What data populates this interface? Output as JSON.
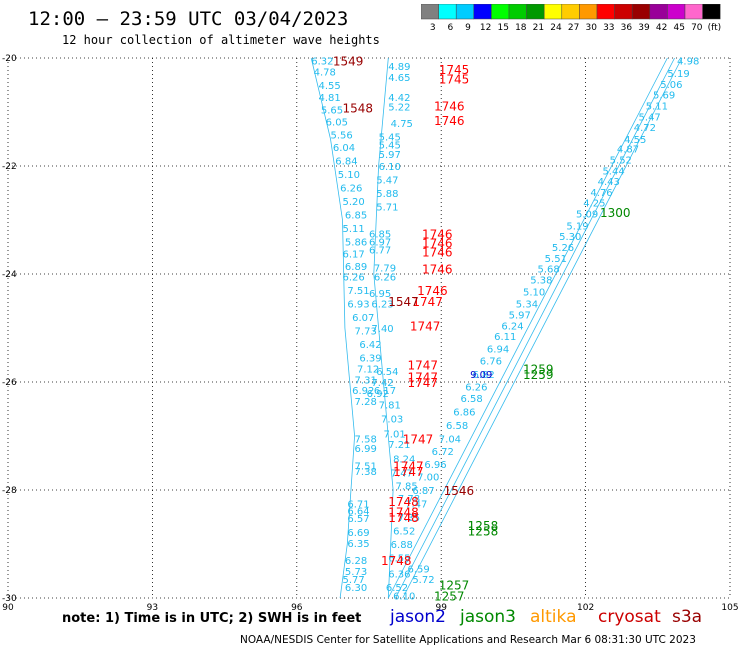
{
  "header": {
    "title": "12:00 — 23:59 UTC 03/04/2023",
    "subtitle": "12 hour collection of altimeter wave heights"
  },
  "colorbar": {
    "ticks": [
      "3",
      "6",
      "9",
      "12",
      "15",
      "18",
      "21",
      "24",
      "27",
      "30",
      "33",
      "36",
      "39",
      "42",
      "45",
      "70",
      "(ft)"
    ],
    "colors": [
      "#808080",
      "#00ffff",
      "#00ccff",
      "#0000ff",
      "#00ff00",
      "#00cc00",
      "#009900",
      "#ffff00",
      "#ffcc00",
      "#ff9900",
      "#ff0000",
      "#cc0000",
      "#990000",
      "#990099",
      "#cc00cc",
      "#ff66cc",
      "#000000"
    ]
  },
  "axes": {
    "x_ticks": [
      "90",
      "93",
      "96",
      "99",
      "102",
      "105"
    ],
    "y_ticks": [
      "-20",
      "-22",
      "-24",
      "-26",
      "-28",
      "-30"
    ]
  },
  "legend": {
    "note": "note:  1) Time is in UTC;  2) SWH is in feet",
    "satellites": [
      {
        "name": "jason2",
        "color": "#0000cc"
      },
      {
        "name": "jason3",
        "color": "#008800"
      },
      {
        "name": "altika",
        "color": "#ff9900"
      },
      {
        "name": "cryosat",
        "color": "#cc0000"
      },
      {
        "name": "s3a",
        "color": "#990000"
      }
    ]
  },
  "credit": "NOAA/NESDIS Center for Satellite Applications and Research    Mar  6 08:31:30 UTC 2023",
  "chart_data": {
    "type": "scatter",
    "xlim": [
      90,
      105
    ],
    "ylim": [
      -30,
      -20
    ],
    "grid": true,
    "swh_labels": [
      {
        "lon": 96.3,
        "lat": -20.05,
        "v": "6.32"
      },
      {
        "lon": 96.35,
        "lat": -20.25,
        "v": "4.78"
      },
      {
        "lon": 96.45,
        "lat": -20.5,
        "v": "4.55"
      },
      {
        "lon": 96.45,
        "lat": -20.72,
        "v": "4.81"
      },
      {
        "lon": 96.5,
        "lat": -20.95,
        "v": "5.65"
      },
      {
        "lon": 96.6,
        "lat": -21.18,
        "v": "6.05"
      },
      {
        "lon": 96.7,
        "lat": -21.42,
        "v": "5.56"
      },
      {
        "lon": 96.75,
        "lat": -21.65,
        "v": "6.04"
      },
      {
        "lon": 96.8,
        "lat": -21.9,
        "v": "6.84"
      },
      {
        "lon": 96.85,
        "lat": -22.15,
        "v": "5.10"
      },
      {
        "lon": 96.9,
        "lat": -22.4,
        "v": "6.26"
      },
      {
        "lon": 96.95,
        "lat": -22.65,
        "v": "5.20"
      },
      {
        "lon": 97.0,
        "lat": -22.9,
        "v": "6.85"
      },
      {
        "lon": 96.95,
        "lat": -23.15,
        "v": "5.11"
      },
      {
        "lon": 97.0,
        "lat": -23.4,
        "v": "5.86"
      },
      {
        "lon": 96.95,
        "lat": -23.62,
        "v": "6.17"
      },
      {
        "lon": 97.0,
        "lat": -23.85,
        "v": "6.89"
      },
      {
        "lon": 96.95,
        "lat": -24.05,
        "v": "6.26"
      },
      {
        "lon": 97.05,
        "lat": -24.3,
        "v": "7.51"
      },
      {
        "lon": 97.05,
        "lat": -24.55,
        "v": "6.93"
      },
      {
        "lon": 97.15,
        "lat": -24.8,
        "v": "6.07"
      },
      {
        "lon": 97.2,
        "lat": -25.05,
        "v": "7.73"
      },
      {
        "lon": 97.3,
        "lat": -25.3,
        "v": "6.42"
      },
      {
        "lon": 97.3,
        "lat": -25.55,
        "v": "6.39"
      },
      {
        "lon": 97.25,
        "lat": -25.75,
        "v": "7.12"
      },
      {
        "lon": 97.2,
        "lat": -25.95,
        "v": "7.31"
      },
      {
        "lon": 97.15,
        "lat": -26.15,
        "v": "6.92"
      },
      {
        "lon": 97.2,
        "lat": -26.35,
        "v": "7.28"
      },
      {
        "lon": 97.6,
        "lat": -26.15,
        "v": "6.17"
      },
      {
        "lon": 97.7,
        "lat": -26.42,
        "v": "7.81"
      },
      {
        "lon": 97.75,
        "lat": -26.68,
        "v": "7.03"
      },
      {
        "lon": 97.8,
        "lat": -26.95,
        "v": "7.01"
      },
      {
        "lon": 97.2,
        "lat": -27.05,
        "v": "7.58"
      },
      {
        "lon": 97.2,
        "lat": -27.22,
        "v": "6.99"
      },
      {
        "lon": 97.2,
        "lat": -27.55,
        "v": "7.51"
      },
      {
        "lon": 97.2,
        "lat": -27.65,
        "v": "7.38"
      },
      {
        "lon": 97.9,
        "lat": -27.15,
        "v": "7.21"
      },
      {
        "lon": 98.0,
        "lat": -27.42,
        "v": "8.24"
      },
      {
        "lon": 97.95,
        "lat": -27.68,
        "v": "7.47"
      },
      {
        "lon": 98.05,
        "lat": -27.92,
        "v": "7.85"
      },
      {
        "lon": 98.1,
        "lat": -28.15,
        "v": "7.78"
      },
      {
        "lon": 97.05,
        "lat": -28.25,
        "v": "6.71"
      },
      {
        "lon": 97.05,
        "lat": -28.38,
        "v": "6.64"
      },
      {
        "lon": 97.05,
        "lat": -28.52,
        "v": "6.57"
      },
      {
        "lon": 97.05,
        "lat": -28.78,
        "v": "6.69"
      },
      {
        "lon": 97.05,
        "lat": -28.98,
        "v": "6.35"
      },
      {
        "lon": 97.0,
        "lat": -29.3,
        "v": "6.28"
      },
      {
        "lon": 97.0,
        "lat": -29.5,
        "v": "5.73"
      },
      {
        "lon": 96.95,
        "lat": -29.65,
        "v": "5.77"
      },
      {
        "lon": 97.0,
        "lat": -29.8,
        "v": "6.30"
      },
      {
        "lon": 97.9,
        "lat": -20.15,
        "v": "4.89"
      },
      {
        "lon": 97.9,
        "lat": -20.35,
        "v": "4.65"
      },
      {
        "lon": 97.9,
        "lat": -20.72,
        "v": "4.42"
      },
      {
        "lon": 97.9,
        "lat": -20.9,
        "v": "5.22"
      },
      {
        "lon": 97.95,
        "lat": -21.2,
        "v": "4.75"
      },
      {
        "lon": 97.7,
        "lat": -21.45,
        "v": "5.45"
      },
      {
        "lon": 97.7,
        "lat": -21.6,
        "v": "5.45"
      },
      {
        "lon": 97.7,
        "lat": -21.78,
        "v": "5.97"
      },
      {
        "lon": 97.7,
        "lat": -22.0,
        "v": "6.10"
      },
      {
        "lon": 97.65,
        "lat": -22.25,
        "v": "5.47"
      },
      {
        "lon": 97.65,
        "lat": -22.5,
        "v": "5.88"
      },
      {
        "lon": 97.65,
        "lat": -22.75,
        "v": "5.71"
      },
      {
        "lon": 97.5,
        "lat": -23.25,
        "v": "6.85"
      },
      {
        "lon": 97.5,
        "lat": -23.4,
        "v": "6.97"
      },
      {
        "lon": 97.5,
        "lat": -23.55,
        "v": "6.77"
      },
      {
        "lon": 97.6,
        "lat": -23.88,
        "v": "7.79"
      },
      {
        "lon": 97.6,
        "lat": -24.05,
        "v": "6.26"
      },
      {
        "lon": 97.5,
        "lat": -24.35,
        "v": "6.95"
      },
      {
        "lon": 97.55,
        "lat": -24.55,
        "v": "6.23"
      },
      {
        "lon": 97.55,
        "lat": -25.0,
        "v": "7.40"
      },
      {
        "lon": 97.65,
        "lat": -25.8,
        "v": "6.54"
      },
      {
        "lon": 97.55,
        "lat": -26.0,
        "v": "7.42"
      },
      {
        "lon": 97.45,
        "lat": -26.2,
        "v": "6.92"
      },
      {
        "lon": 103.9,
        "lat": -20.05,
        "v": "4.98"
      },
      {
        "lon": 103.7,
        "lat": -20.28,
        "v": "5.19"
      },
      {
        "lon": 103.55,
        "lat": -20.48,
        "v": "5.06"
      },
      {
        "lon": 103.4,
        "lat": -20.68,
        "v": "5.69"
      },
      {
        "lon": 103.25,
        "lat": -20.88,
        "v": "5.11"
      },
      {
        "lon": 103.1,
        "lat": -21.08,
        "v": "5.47"
      },
      {
        "lon": 103.0,
        "lat": -21.28,
        "v": "4.72"
      },
      {
        "lon": 102.8,
        "lat": -21.5,
        "v": "4.55"
      },
      {
        "lon": 102.65,
        "lat": -21.68,
        "v": "4.87"
      },
      {
        "lon": 102.5,
        "lat": -21.88,
        "v": "5.52"
      },
      {
        "lon": 102.35,
        "lat": -22.08,
        "v": "5.44"
      },
      {
        "lon": 102.25,
        "lat": -22.28,
        "v": "4.43"
      },
      {
        "lon": 102.1,
        "lat": -22.48,
        "v": "4.76"
      },
      {
        "lon": 101.95,
        "lat": -22.68,
        "v": "4.25"
      },
      {
        "lon": 101.8,
        "lat": -22.88,
        "v": "5.09"
      },
      {
        "lon": 101.6,
        "lat": -23.1,
        "v": "5.19"
      },
      {
        "lon": 101.45,
        "lat": -23.3,
        "v": "5.30"
      },
      {
        "lon": 101.3,
        "lat": -23.5,
        "v": "5.26"
      },
      {
        "lon": 101.15,
        "lat": -23.7,
        "v": "5.51"
      },
      {
        "lon": 101.0,
        "lat": -23.9,
        "v": "5.68"
      },
      {
        "lon": 100.85,
        "lat": -24.1,
        "v": "5.38"
      },
      {
        "lon": 100.7,
        "lat": -24.32,
        "v": "5.10"
      },
      {
        "lon": 100.55,
        "lat": -24.55,
        "v": "5.34"
      },
      {
        "lon": 100.4,
        "lat": -24.75,
        "v": "5.97"
      },
      {
        "lon": 100.25,
        "lat": -24.95,
        "v": "6.24"
      },
      {
        "lon": 100.1,
        "lat": -25.15,
        "v": "6.11"
      },
      {
        "lon": 99.95,
        "lat": -25.38,
        "v": "6.94"
      },
      {
        "lon": 99.8,
        "lat": -25.6,
        "v": "6.76"
      },
      {
        "lon": 99.65,
        "lat": -25.85,
        "v": "6.82"
      },
      {
        "lon": 99.5,
        "lat": -26.08,
        "v": "6.26"
      },
      {
        "lon": 99.4,
        "lat": -26.3,
        "v": "6.58"
      },
      {
        "lon": 99.25,
        "lat": -26.55,
        "v": "6.86"
      },
      {
        "lon": 99.1,
        "lat": -26.8,
        "v": "6.58"
      },
      {
        "lon": 98.95,
        "lat": -27.05,
        "v": "7.04"
      },
      {
        "lon": 98.8,
        "lat": -27.28,
        "v": "6.72"
      },
      {
        "lon": 98.65,
        "lat": -27.52,
        "v": "6.96"
      },
      {
        "lon": 98.5,
        "lat": -27.75,
        "v": "7.00"
      },
      {
        "lon": 98.4,
        "lat": -28.0,
        "v": "6.87"
      },
      {
        "lon": 98.25,
        "lat": -28.25,
        "v": "7.47"
      },
      {
        "lon": 98.1,
        "lat": -28.5,
        "v": "7.35"
      },
      {
        "lon": 98.0,
        "lat": -28.75,
        "v": "6.52"
      },
      {
        "lon": 97.95,
        "lat": -29.0,
        "v": "6.88"
      },
      {
        "lon": 97.9,
        "lat": -29.25,
        "v": "6.55"
      },
      {
        "lon": 97.9,
        "lat": -29.55,
        "v": "6.36"
      },
      {
        "lon": 97.85,
        "lat": -29.8,
        "v": "6.52"
      },
      {
        "lon": 98.0,
        "lat": -29.95,
        "v": "6.10"
      },
      {
        "lon": 98.4,
        "lat": -29.65,
        "v": "5.72"
      },
      {
        "lon": 98.3,
        "lat": -29.45,
        "v": "6.59"
      },
      {
        "lon": 99.6,
        "lat": -25.85,
        "v": "9.09"
      }
    ],
    "time_labels": [
      {
        "lon": 96.75,
        "lat": -20.05,
        "v": "1549",
        "c": "#990000"
      },
      {
        "lon": 98.95,
        "lat": -20.2,
        "v": "1745",
        "c": "#ff0000"
      },
      {
        "lon": 98.95,
        "lat": -20.38,
        "v": "1745",
        "c": "#ff0000"
      },
      {
        "lon": 96.95,
        "lat": -20.92,
        "v": "1548",
        "c": "#990000"
      },
      {
        "lon": 98.85,
        "lat": -20.88,
        "v": "1746",
        "c": "#ff0000"
      },
      {
        "lon": 98.85,
        "lat": -21.15,
        "v": "1746",
        "c": "#ff0000"
      },
      {
        "lon": 102.3,
        "lat": -22.85,
        "v": "1300",
        "c": "#008800"
      },
      {
        "lon": 98.6,
        "lat": -23.25,
        "v": "1746",
        "c": "#ff0000"
      },
      {
        "lon": 98.6,
        "lat": -23.42,
        "v": "1746",
        "c": "#ff0000"
      },
      {
        "lon": 98.6,
        "lat": -23.58,
        "v": "1746",
        "c": "#ff0000"
      },
      {
        "lon": 98.6,
        "lat": -23.9,
        "v": "1746",
        "c": "#ff0000"
      },
      {
        "lon": 98.5,
        "lat": -24.3,
        "v": "1746",
        "c": "#ff0000"
      },
      {
        "lon": 98.4,
        "lat": -24.5,
        "v": "1747",
        "c": "#ff0000"
      },
      {
        "lon": 97.9,
        "lat": -24.5,
        "v": "1547",
        "c": "#990000"
      },
      {
        "lon": 98.35,
        "lat": -24.95,
        "v": "1747",
        "c": "#ff0000"
      },
      {
        "lon": 98.3,
        "lat": -25.68,
        "v": "1747",
        "c": "#ff0000"
      },
      {
        "lon": 98.3,
        "lat": -25.9,
        "v": "1747",
        "c": "#ff0000"
      },
      {
        "lon": 98.3,
        "lat": -26.0,
        "v": "1747",
        "c": "#ff0000"
      },
      {
        "lon": 100.7,
        "lat": -25.75,
        "v": "1259",
        "c": "#008800"
      },
      {
        "lon": 100.7,
        "lat": -25.85,
        "v": "1259",
        "c": "#008800"
      },
      {
        "lon": 98.2,
        "lat": -27.05,
        "v": "1747",
        "c": "#ff0000"
      },
      {
        "lon": 98.0,
        "lat": -27.55,
        "v": "1747",
        "c": "#ff0000"
      },
      {
        "lon": 98.0,
        "lat": -27.65,
        "v": "1747",
        "c": "#ff0000"
      },
      {
        "lon": 99.05,
        "lat": -28.0,
        "v": "1546",
        "c": "#990000"
      },
      {
        "lon": 97.9,
        "lat": -28.2,
        "v": "1748",
        "c": "#ff0000"
      },
      {
        "lon": 97.9,
        "lat": -28.4,
        "v": "1748",
        "c": "#ff0000"
      },
      {
        "lon": 97.9,
        "lat": -28.5,
        "v": "1748",
        "c": "#ff0000"
      },
      {
        "lon": 99.55,
        "lat": -28.65,
        "v": "1258",
        "c": "#008800"
      },
      {
        "lon": 99.55,
        "lat": -28.75,
        "v": "1258",
        "c": "#008800"
      },
      {
        "lon": 97.75,
        "lat": -29.3,
        "v": "1748",
        "c": "#ff0000"
      },
      {
        "lon": 98.95,
        "lat": -29.75,
        "v": "1257",
        "c": "#008800"
      },
      {
        "lon": 98.85,
        "lat": -29.95,
        "v": "1257",
        "c": "#008800"
      }
    ],
    "tracks": [
      {
        "color": "#33bbee",
        "pts": [
          [
            96.3,
            -20.0
          ],
          [
            96.7,
            -21.5
          ],
          [
            96.95,
            -23.0
          ],
          [
            97.0,
            -25.0
          ],
          [
            97.2,
            -27.0
          ],
          [
            97.05,
            -29.0
          ],
          [
            96.9,
            -30.0
          ]
        ]
      },
      {
        "color": "#33bbee",
        "pts": [
          [
            97.9,
            -20.0
          ],
          [
            97.7,
            -22.0
          ],
          [
            97.6,
            -24.0
          ],
          [
            97.8,
            -26.0
          ],
          [
            98.0,
            -28.0
          ],
          [
            97.9,
            -30.0
          ]
        ]
      },
      {
        "color": "#33bbee",
        "pts": [
          [
            104.0,
            -20.0
          ],
          [
            98.2,
            -30.0
          ]
        ]
      },
      {
        "color": "#33bbee",
        "pts": [
          [
            103.85,
            -20.0
          ],
          [
            98.05,
            -30.0
          ]
        ]
      },
      {
        "color": "#33bbee",
        "pts": [
          [
            103.7,
            -20.0
          ],
          [
            97.9,
            -30.0
          ]
        ]
      }
    ]
  }
}
